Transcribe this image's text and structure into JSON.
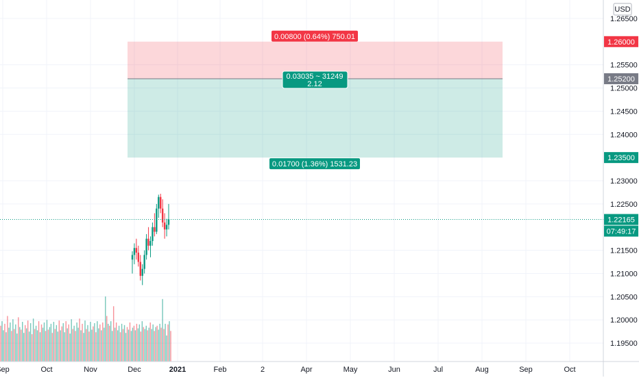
{
  "chart_data": {
    "type": "candlestick",
    "currency": "USD",
    "x_labels": [
      "Sep",
      "Oct",
      "Nov",
      "Dec",
      "2021",
      "Feb",
      "2",
      "Apr",
      "May",
      "Jun",
      "Jul",
      "Aug",
      "Sep",
      "Oct"
    ],
    "y_ticks": [
      "1.26500",
      "1.25500",
      "1.25000",
      "1.24500",
      "1.24000",
      "1.23000",
      "1.22500",
      "1.21500",
      "1.21000",
      "1.20500",
      "1.20000",
      "1.19500"
    ],
    "ylim": [
      1.1925,
      1.2675
    ],
    "price_tags": [
      {
        "value": 1.26,
        "label": "1.26000",
        "color": "#f23645"
      },
      {
        "value": 1.252,
        "label": "1.25200",
        "color": "#787b86"
      },
      {
        "value": 1.235,
        "label": "1.23500",
        "color": "#089981"
      },
      {
        "value": 1.22165,
        "label": "1.22165",
        "color": "#089981"
      }
    ],
    "countdown": "07:49:17",
    "position": {
      "type": "short",
      "target_label": "0.00800 (0.64%) 750.01",
      "ratio_line1": "0.03035 ~ 31249",
      "ratio_line2": "2.12",
      "stop_label": "0.01700 (1.36%) 1531.23",
      "profit_color": "#f23645",
      "risk_color": "#089981"
    },
    "up_color": "#089981",
    "down_color": "#f23645",
    "candles": [
      [
        1.213,
        1.2148,
        1.21,
        1.214
      ],
      [
        1.214,
        1.2165,
        1.212,
        1.2155
      ],
      [
        1.2155,
        1.2175,
        1.213,
        1.2145
      ],
      [
        1.2145,
        1.216,
        1.2115,
        1.2125
      ],
      [
        1.2125,
        1.214,
        1.2085,
        1.2095
      ],
      [
        1.2095,
        1.212,
        1.2075,
        1.211
      ],
      [
        1.211,
        1.215,
        1.21,
        1.214
      ],
      [
        1.214,
        1.2185,
        1.213,
        1.2175
      ],
      [
        1.2175,
        1.22,
        1.215,
        1.216
      ],
      [
        1.216,
        1.218,
        1.2135,
        1.217
      ],
      [
        1.217,
        1.221,
        1.216,
        1.22
      ],
      [
        1.22,
        1.223,
        1.218,
        1.219
      ],
      [
        1.219,
        1.225,
        1.2185,
        1.224
      ],
      [
        1.224,
        1.227,
        1.222,
        1.2265
      ],
      [
        1.2265,
        1.2272,
        1.223,
        1.224
      ],
      [
        1.224,
        1.226,
        1.22,
        1.221
      ],
      [
        1.221,
        1.223,
        1.2175,
        1.2195
      ],
      [
        1.2195,
        1.2218,
        1.218,
        1.2205
      ],
      [
        1.2205,
        1.225,
        1.2195,
        1.2217
      ]
    ],
    "volumes": [
      0.55,
      0.62,
      0.48,
      0.58,
      0.45,
      0.7,
      0.52,
      0.6,
      0.47,
      0.65,
      0.5,
      0.57,
      0.43,
      0.68,
      0.53,
      0.49,
      0.61,
      0.44,
      0.56,
      0.51,
      0.63,
      0.46,
      0.59,
      0.42,
      0.66,
      0.5,
      0.55,
      0.48,
      0.62,
      0.45,
      0.57,
      0.52,
      0.6,
      0.47,
      0.64,
      0.49,
      0.53,
      0.58,
      0.44,
      0.61,
      0.5,
      0.56,
      0.46,
      0.63,
      0.48,
      0.54,
      0.59,
      0.45,
      0.62,
      0.51,
      0.57,
      0.43,
      0.65,
      0.5,
      0.55,
      0.47,
      0.6,
      0.52,
      0.66,
      0.48,
      0.58,
      0.44,
      0.63,
      0.5,
      0.56,
      0.46,
      0.61,
      0.49,
      0.54,
      0.59,
      0.45,
      0.62,
      0.51,
      0.57,
      0.48,
      0.6,
      0.52,
      1.0,
      0.7,
      0.58,
      0.55,
      0.62,
      0.47,
      0.85,
      0.52,
      0.6,
      0.48,
      0.55,
      0.45,
      0.58,
      0.5,
      0.56,
      0.44,
      0.53,
      0.49,
      0.6,
      0.47,
      0.52,
      0.55,
      0.48,
      0.58,
      0.51,
      0.57,
      0.46,
      0.62,
      0.53,
      0.5,
      0.55,
      0.48,
      0.52,
      0.6,
      0.5,
      0.57,
      0.47,
      0.53,
      0.55,
      0.49,
      0.58,
      0.52,
      0.96,
      0.5,
      0.58,
      0.4,
      0.57,
      0.62,
      0.47
    ]
  }
}
